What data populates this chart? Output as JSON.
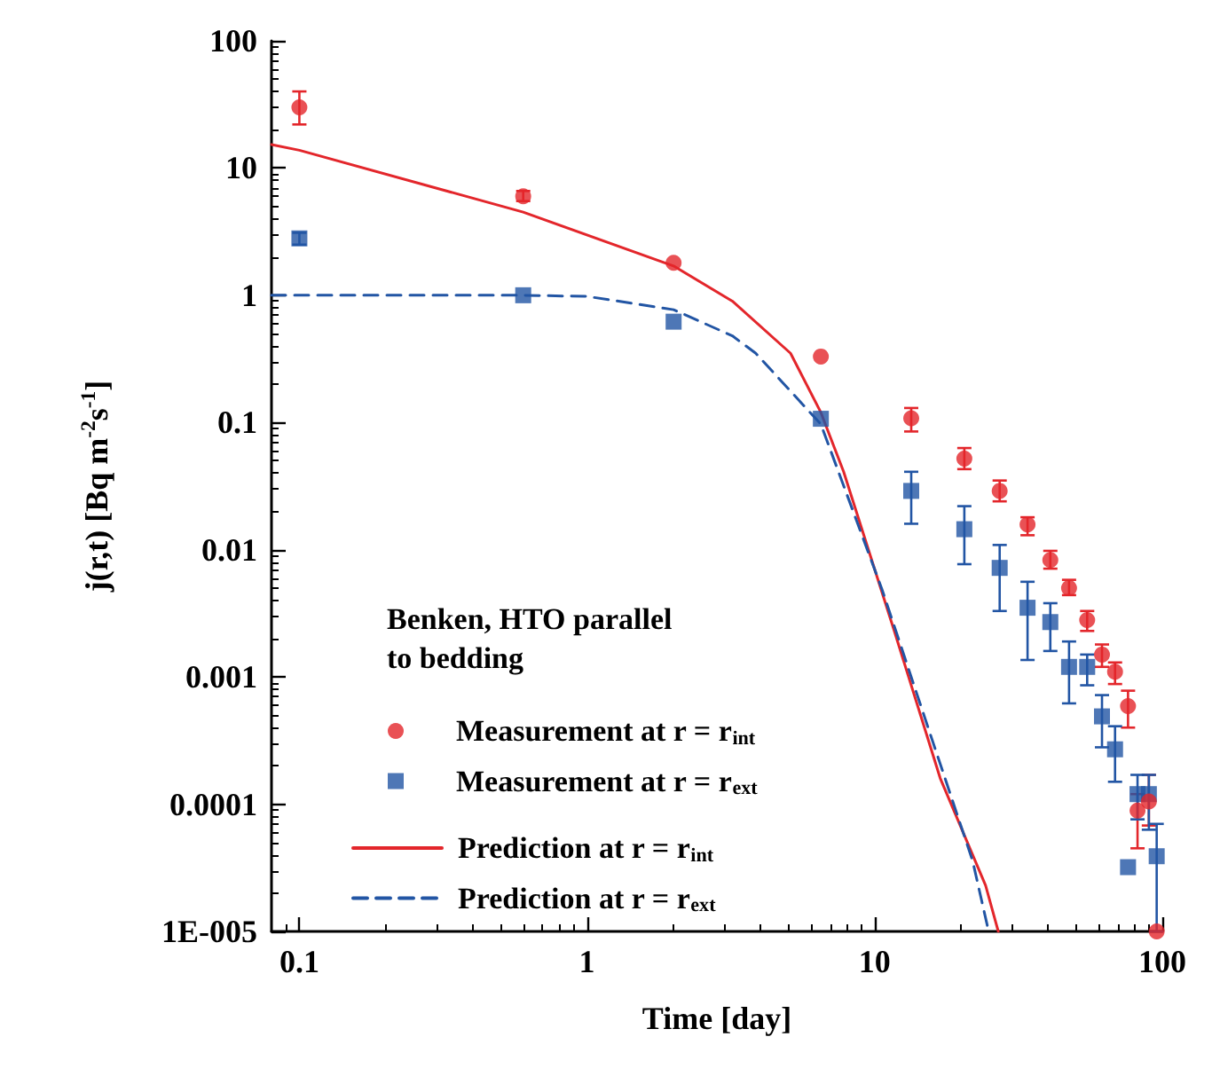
{
  "chart_data": {
    "type": "scatter",
    "xlabel": "Time [day]",
    "ylabel": "j(r,t) [Bq m$^{-2}$s$^{-1}$]",
    "legend_title": "Benken, HTO parallel to bedding",
    "legend": "bottom left",
    "log": "xy",
    "grid": false,
    "xlim": [
      0.08,
      100
    ],
    "xticks": [
      0.1,
      1,
      10,
      100
    ],
    "ylim": [
      1e-05,
      100
    ],
    "yticks": [
      {
        "value": 1e-05,
        "label": "1E-005"
      },
      0.0001,
      0.001,
      0.01,
      0.1,
      1,
      10,
      100
    ],
    "series": [
      {
        "name": "Measurement at r = r$_{int}$",
        "marker": "circle",
        "color": "#e3262b",
        "x": [
          0.1,
          0.6,
          2,
          6.5,
          13.4,
          20.5,
          27.2,
          34,
          40.8,
          47.4,
          54.8,
          61.7,
          68.5,
          76,
          82,
          89.8,
          95.6
        ],
        "values": [
          30,
          6,
          1.8,
          0.33,
          0.108,
          0.052,
          0.029,
          0.0158,
          0.0083,
          0.005,
          0.0028,
          0.0015,
          0.0011,
          0.00059,
          8.9e-05,
          0.000105,
          1e-05
        ],
        "errors": [
          [
            22,
            40
          ],
          [
            5.5,
            6.6
          ],
          null,
          null,
          [
            0.085,
            0.13
          ],
          [
            0.043,
            0.063
          ],
          [
            0.024,
            0.035
          ],
          [
            0.013,
            0.018
          ],
          [
            0.0071,
            0.0098
          ],
          [
            0.0044,
            0.0058
          ],
          [
            0.0023,
            0.0033
          ],
          [
            0.0012,
            0.0018
          ],
          [
            0.00088,
            0.0013
          ],
          [
            0.0004,
            0.00078
          ],
          [
            4.5e-05,
            0.00012
          ],
          [
            6.8e-05,
            0.00017
          ],
          null
        ]
      },
      {
        "name": "Measurement at r = r$_{ext}$",
        "marker": "square",
        "color": "#2255a4",
        "x": [
          0.1,
          0.6,
          2,
          6.5,
          13.4,
          20.5,
          27.2,
          34,
          40.8,
          47.4,
          54.8,
          61.7,
          68.5,
          76,
          82,
          89.8,
          95.6
        ],
        "values": [
          2.8,
          1,
          0.62,
          0.107,
          0.029,
          0.0145,
          0.0072,
          0.0035,
          0.0027,
          0.0012,
          0.0012,
          0.00049,
          0.00027,
          3.2e-05,
          0.00012,
          0.00012,
          3.9e-05
        ],
        "errors": [
          [
            2.5,
            3.1
          ],
          null,
          null,
          null,
          [
            0.016,
            0.041
          ],
          [
            0.0077,
            0.022
          ],
          [
            0.0033,
            0.0109
          ],
          [
            0.00136,
            0.0056
          ],
          [
            0.0016,
            0.0038
          ],
          [
            0.00062,
            0.0019
          ],
          [
            0.00086,
            0.0015
          ],
          [
            0.00028,
            0.00072
          ],
          [
            0.00015,
            0.00041
          ],
          null,
          [
            7.6e-05,
            0.00017
          ],
          [
            6.3e-05,
            0.00017
          ],
          [
            1e-05,
            7e-05
          ]
        ]
      },
      {
        "name": "Prediction at r = r$_{int}$",
        "type": "line",
        "marker": "none",
        "line_style": "solid",
        "color": "#e3262b",
        "x": [
          0.08,
          0.1,
          0.6,
          2,
          3.2,
          5.1,
          6.5,
          7.8,
          11.7,
          16.9,
          24.3,
          26.9
        ],
        "values": [
          15.3,
          13.8,
          4.5,
          1.7,
          0.9,
          0.35,
          0.12,
          0.041,
          0.0023,
          0.00016,
          2.3e-05,
          1e-05
        ]
      },
      {
        "name": "Prediction at r = r$_{ext}$",
        "type": "line",
        "marker": "none",
        "line_style": "dashed",
        "color": "#2255a4",
        "x": [
          0.08,
          0.6,
          1,
          2,
          3.2,
          3.86,
          6.5,
          10.6,
          16,
          21.9,
          24.9
        ],
        "values": [
          1,
          1,
          0.98,
          0.77,
          0.48,
          0.35,
          0.097,
          0.0049,
          0.0003,
          3.6e-05,
          1e-05
        ]
      }
    ]
  }
}
